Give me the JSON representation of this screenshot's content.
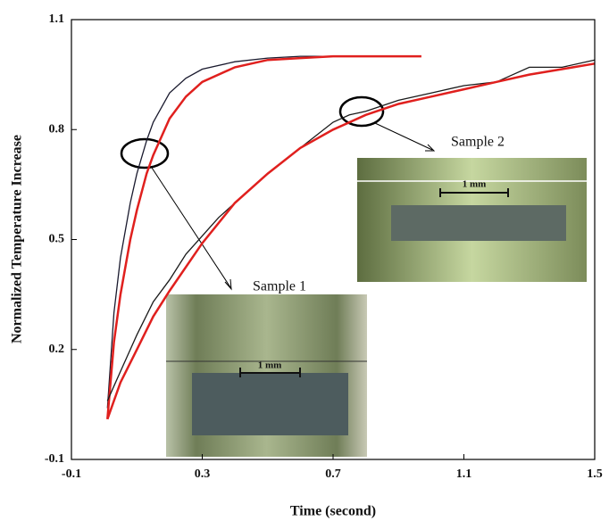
{
  "chart_data": {
    "type": "line",
    "x_label": "Time (second)",
    "y_label": "Normalized Temperature Increase",
    "xlim": [
      -0.1,
      1.5
    ],
    "ylim": [
      -0.1,
      1.1
    ],
    "xticks": [
      -0.1,
      0.3,
      0.7,
      1.1,
      1.5
    ],
    "yticks": [
      -0.1,
      0.2,
      0.5,
      0.8,
      1.1
    ],
    "series": [
      {
        "color": "#1a1a2e",
        "x": [
          0.01,
          0.03,
          0.05,
          0.08,
          0.1,
          0.13,
          0.15,
          0.2,
          0.25,
          0.3,
          0.4,
          0.5,
          0.6,
          0.7,
          0.8,
          0.9,
          0.95
        ],
        "values": [
          0.04,
          0.3,
          0.45,
          0.6,
          0.68,
          0.77,
          0.82,
          0.9,
          0.94,
          0.965,
          0.985,
          0.995,
          1.0,
          1.0,
          1.0,
          1.0,
          1.0
        ]
      },
      {
        "color": "#e0201e",
        "x": [
          0.01,
          0.03,
          0.05,
          0.08,
          0.1,
          0.13,
          0.15,
          0.2,
          0.25,
          0.3,
          0.4,
          0.5,
          0.6,
          0.7,
          0.8,
          0.9,
          0.97
        ],
        "values": [
          0.01,
          0.22,
          0.35,
          0.5,
          0.58,
          0.68,
          0.73,
          0.83,
          0.89,
          0.93,
          0.97,
          0.99,
          0.995,
          1.0,
          1.0,
          1.0,
          1.0
        ]
      },
      {
        "color": "#1a1a1a",
        "x": [
          0.01,
          0.03,
          0.05,
          0.1,
          0.15,
          0.2,
          0.25,
          0.3,
          0.35,
          0.4,
          0.5,
          0.6,
          0.7,
          0.75,
          0.8,
          0.9,
          1.0,
          1.1,
          1.2,
          1.3,
          1.4,
          1.5
        ],
        "values": [
          0.06,
          0.1,
          0.14,
          0.24,
          0.33,
          0.39,
          0.46,
          0.51,
          0.56,
          0.6,
          0.68,
          0.75,
          0.82,
          0.84,
          0.85,
          0.88,
          0.9,
          0.92,
          0.93,
          0.97,
          0.97,
          0.99
        ]
      },
      {
        "color": "#e0201e",
        "x": [
          0.01,
          0.05,
          0.1,
          0.15,
          0.2,
          0.3,
          0.4,
          0.5,
          0.6,
          0.7,
          0.8,
          0.9,
          1.0,
          1.1,
          1.2,
          1.3,
          1.4,
          1.5
        ],
        "values": [
          0.01,
          0.11,
          0.2,
          0.29,
          0.36,
          0.49,
          0.6,
          0.68,
          0.75,
          0.8,
          0.84,
          0.87,
          0.89,
          0.91,
          0.93,
          0.95,
          0.965,
          0.98
        ]
      }
    ],
    "annotations": [
      "Sample 1",
      "Sample 2",
      "1 mm",
      "1 mm"
    ]
  }
}
